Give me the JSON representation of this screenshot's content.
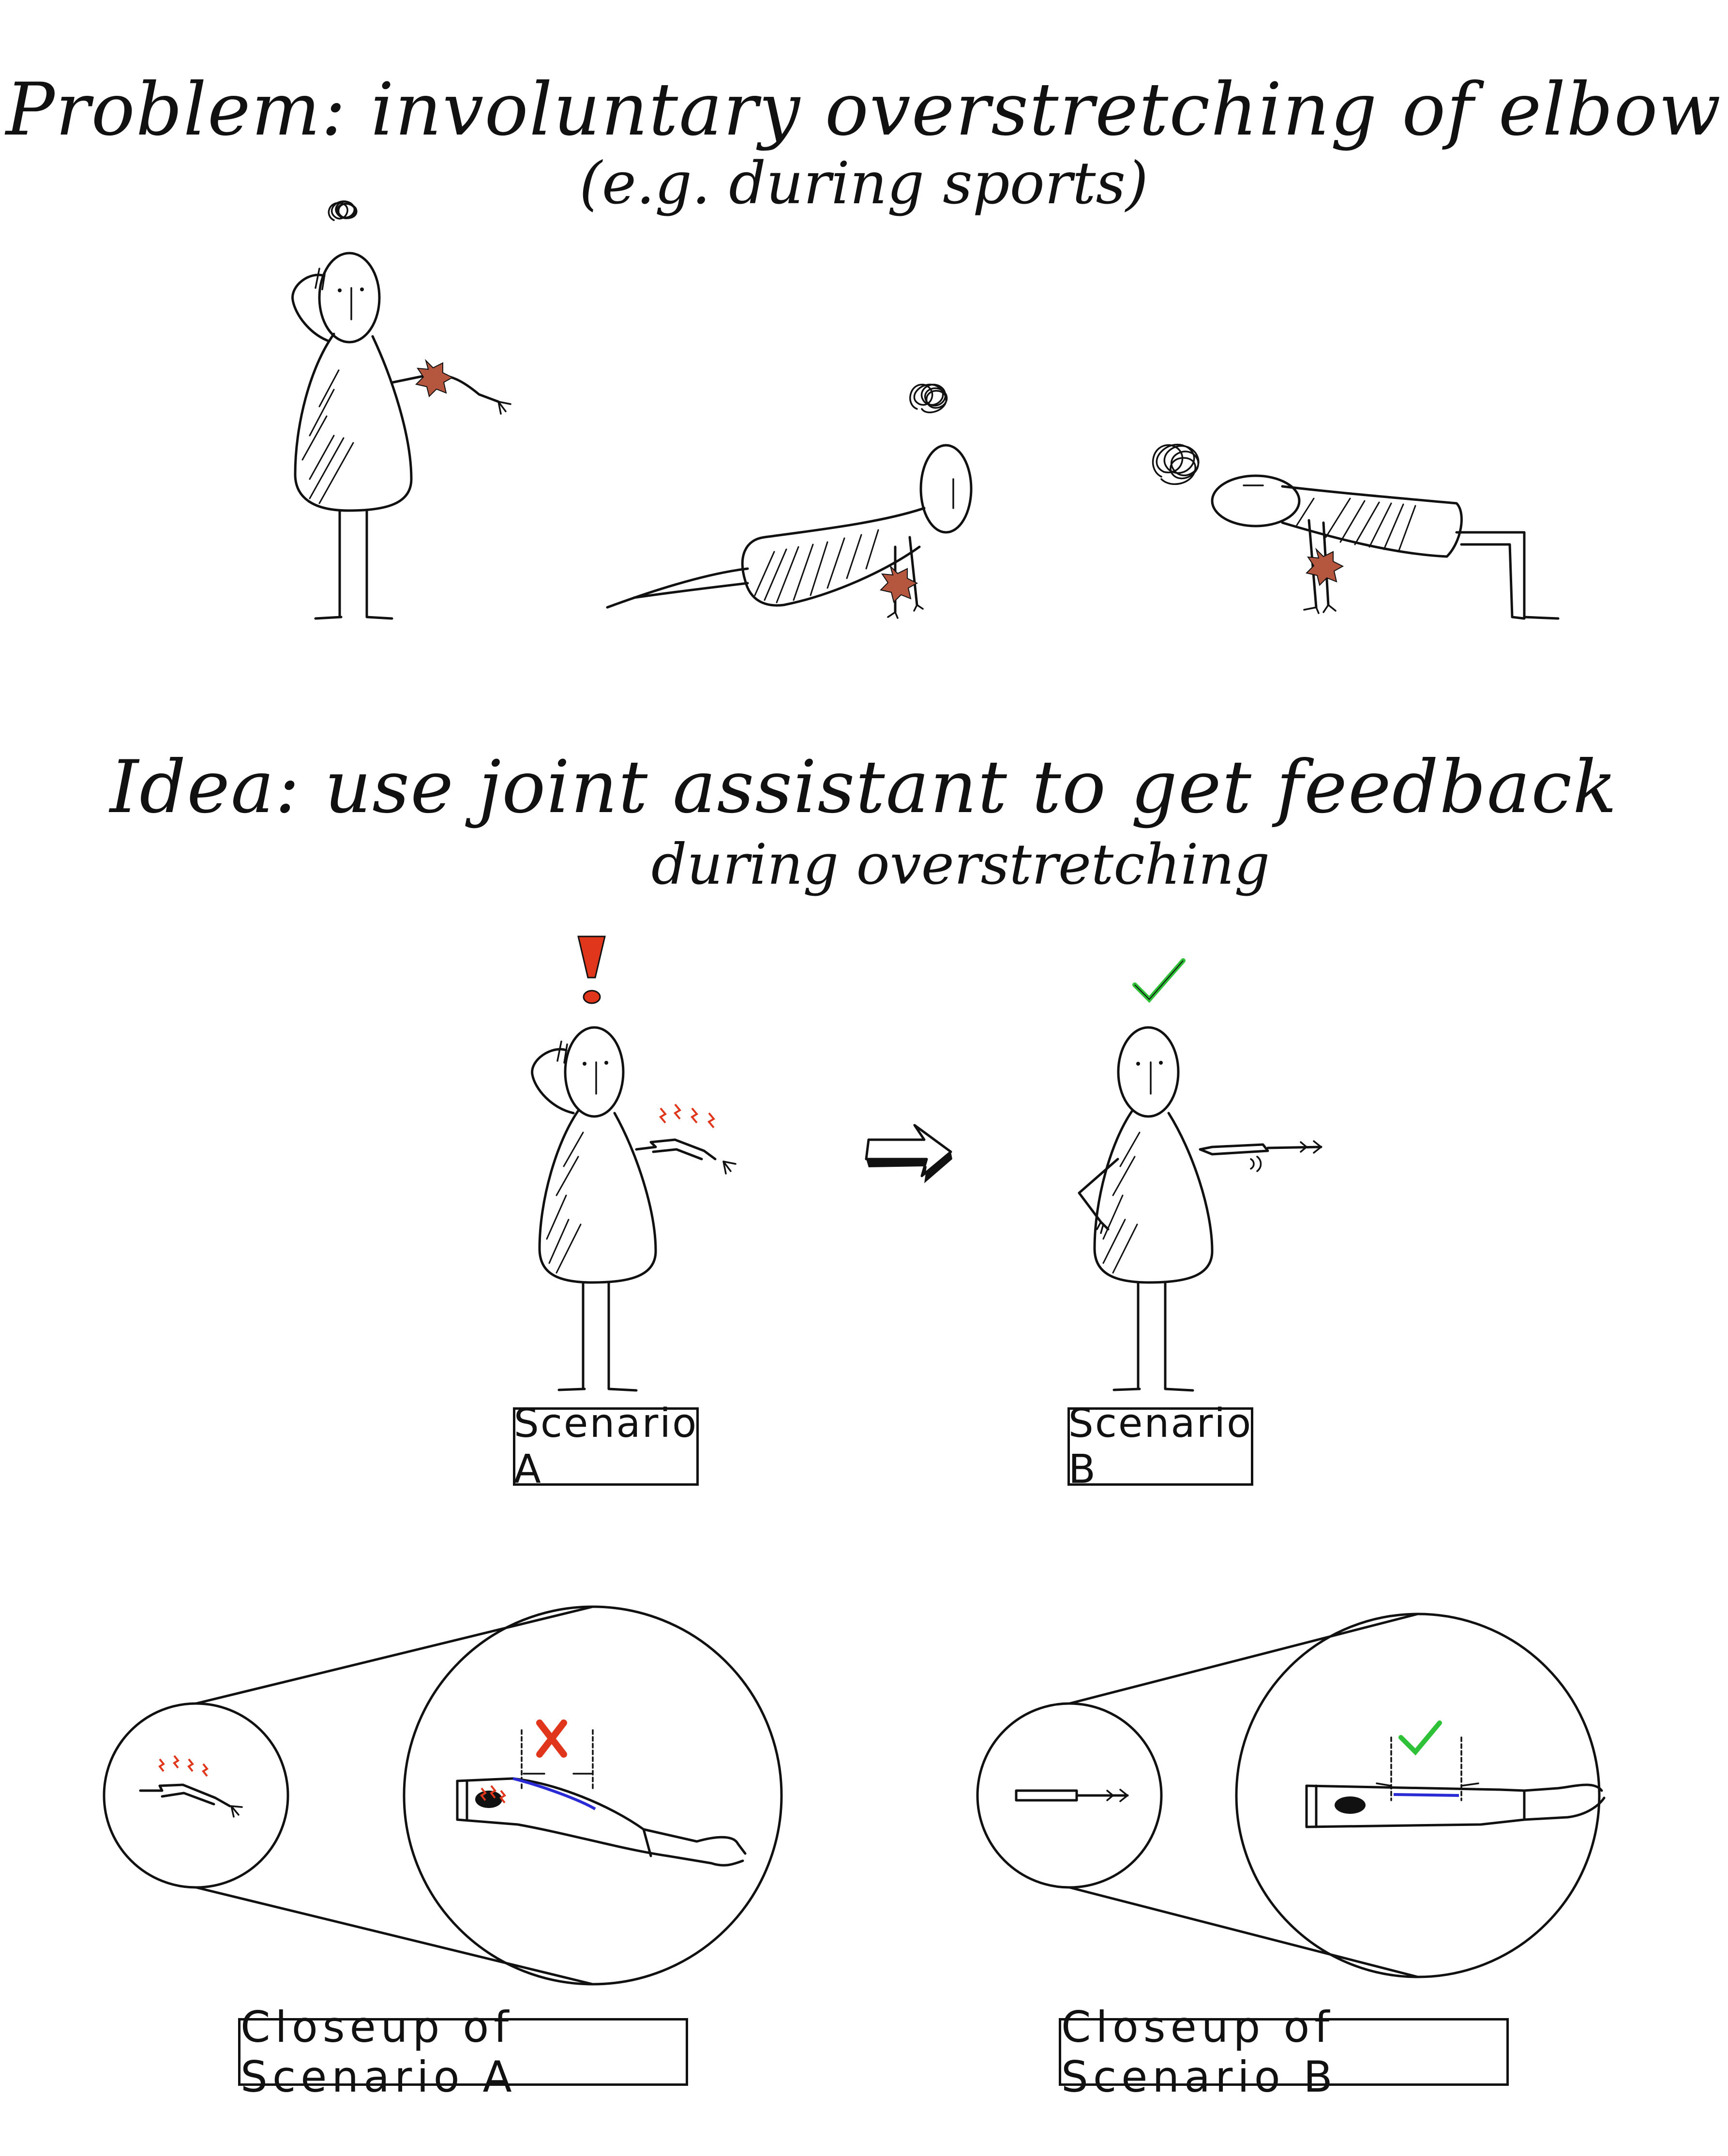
{
  "problem": {
    "title": "Problem: involuntary overstretching of elbow",
    "subtitle": "(e.g. during sports)"
  },
  "idea": {
    "title": "Idea: use joint assistant to get feedback",
    "subtitle": "during overstretching"
  },
  "scenarios": {
    "a_label": "Scenario A",
    "b_label": "Scenario B"
  },
  "closeups": {
    "a_label": "Closeup of Scenario A",
    "b_label": "Closeup of Scenario B"
  },
  "colors": {
    "pain": "#b5563f",
    "alert": "#e0361c",
    "ok": "#2fc238",
    "sensor_line": "#2b2bd6",
    "ink": "#111111"
  },
  "icons": [
    "pain-burst-icon",
    "exclamation-icon",
    "checkmark-icon",
    "right-arrow-icon",
    "cross-icon",
    "scribble-icon"
  ]
}
